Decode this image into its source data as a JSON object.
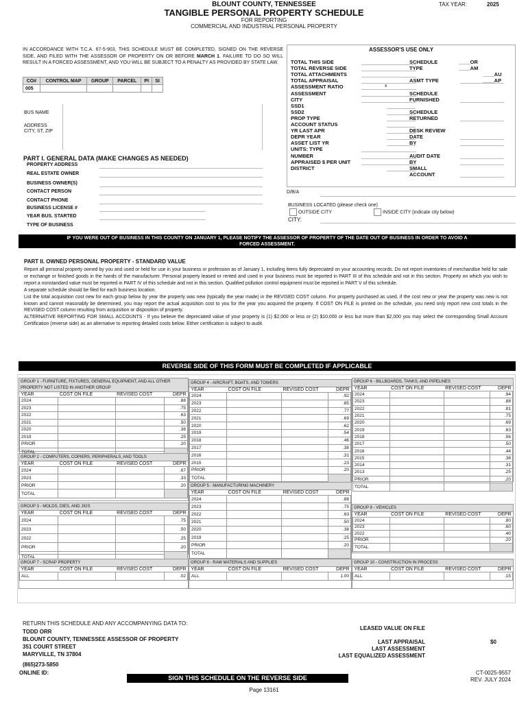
{
  "header": {
    "county": "BLOUNT COUNTY, TENNESSEE",
    "title": "TANGIBLE PERSONAL PROPERTY SCHEDULE",
    "sub1": "FOR REPORTING",
    "sub2": "COMMERCIAL AND INDUSTRIAL PERSONAL PROPERTY",
    "tax_year_label": "TAX YEAR:",
    "tax_year": "2025"
  },
  "notice": {
    "pre": "IN ACCORDANCE WITH T.C.A. 67-5-903, THIS SCHEDULE MUST BE COMPLETED, SIGNED ON THE REVERSE SIDE, AND FILED WITH THE ASSESSOR OF PROPERTY ON OR BEFORE ",
    "bold": "MARCH 1",
    "post": ". FAILURE TO DO SO WILL RESULT IN A FORCED ASSESSMENT, AND YOU WILL BE SUBJECT TO A PENALTY AS PROVIDED BY STATE LAW."
  },
  "parcel": {
    "headers": [
      "CO#",
      "CONTROL MAP",
      "GROUP",
      "PARCEL",
      "PI",
      "SI"
    ],
    "values": [
      "005",
      "",
      "",
      "",
      "",
      ""
    ]
  },
  "assessor": {
    "title": "ASSESSOR'S USE ONLY",
    "left": [
      "TOTAL THIS SIDE",
      "TOTAL REVERSE SIDE",
      "TOTAL ATTACHMENTS",
      "TOTAL APPRAISAL",
      "ASSESSMENT RATIO",
      "ASSESSMENT",
      "CITY",
      "SSD1",
      "SSD2",
      "PROP TYPE",
      "ACCOUNT STATUS",
      "YR LAST APR",
      "DEPR YEAR",
      "ASSET LIST YR",
      "UNITS: TYPE",
      "NUMBER",
      "APPRAISED $ PER UNIT",
      "DISTRICT"
    ],
    "ratio_mark": "x",
    "right": [
      "SCHEDULE",
      "TYPE",
      "",
      "ASMT TYPE",
      "",
      "SCHEDULE",
      "FURNISHED",
      "",
      "SCHEDULE",
      "RETURNED",
      "",
      "DESK REVIEW",
      "DATE",
      "BY",
      "",
      "AUDIT DATE",
      "BY",
      "SMALL",
      "ACCOUNT"
    ],
    "schedule_opts": [
      "____OR",
      "____AM",
      "____AU",
      "____AP"
    ]
  },
  "business": {
    "name_label": "BUS NAME",
    "address_label": "ADDRESS",
    "city_label": "CITY, ST, ZIP"
  },
  "part1": {
    "title": "PART I. GENERAL DATA (MAKE CHANGES AS NEEDED)",
    "fields": [
      "PROPERTY ADDRESS",
      "REAL ESTATE OWNER",
      "BUSINESS OWNER(S)",
      "CONTACT PERSON",
      "CONTACT PHONE",
      "BUSINESS LICENSE #",
      "YEAR BUS. STARTED",
      "TYPE OF BUSINESS"
    ],
    "dba": "D/B/A",
    "located": "BUSINESS LOCATED (please check one)",
    "outside": "OUTSIDE CITY",
    "inside": "INSIDE CITY (indicate city below)",
    "city": "CITY:"
  },
  "out_of_business": "IF YOU WERE OUT OF BUSINESS IN THIS COUNTY ON JANUARY 1, PLEASE NOTIFY THE ASSESSOR OF PROPERTY OF THE DATE OUT OF BUSINESS IN ORDER TO AVOID A FORCED ASSESSMENT.",
  "part2": {
    "title": "PART II. OWNED PERSONAL PROPERTY - STANDARD VALUE",
    "paragraphs": [
      "Report all personal property owned by you and used or held for use in your business or profession as of January 1, including items fully depreciated on your accounting records. Do not report inventories of merchandise held for sale or exchange or finished goods in the hands of the manufacturer. Personal property leased or rented and used in your business must be reported in PART III of this schedule and not in this section. Property on which you wish to report a nonstandard value must be reported in PART IV of this schedule and not in this section. Qualified pollution control equipment must be reported in PART V of this schedule.",
      "A separate schedule should be filed for each business location.",
      "List the total acquisition cost new for each group below by year the property was new (typically the year made) in the REVISED COST column. For property purchased as used, if the cost new or year the property was new is not known and cannot reasonably be determined, you may report the actual acquisition cost to you for the year you acquired the property. If COST ON FILE is printed on the schedule, you need only report new cost totals in the REVISED COST column resulting from acquisition or disposition of property.",
      "ALTERNATIVE REPORTING FOR SMALL ACCOUNTS - If you believe the depreciated value of your property is (1) $2,000 or less or (2) $10,000 or less but more than $2,000 you may select the corresponding Small Account Certification (reverse side) as an alternative to reporting detailed costs below. Either certification is subject to audit."
    ]
  },
  "reverse_banner": "REVERSE SIDE OF THIS FORM MUST BE COMPLETED IF APPLICABLE",
  "columns": [
    "YEAR",
    "COST ON FILE",
    "REVISED COST",
    "DEPR"
  ],
  "total_label": "TOTAL",
  "groups": [
    {
      "id": "g1",
      "title": "GROUP 1 - FURNITURE, FIXTURES, GENERAL EQUIPMENT, AND ALL OTHER PROPERTY NOT LISTED IN ANOTHER GROUP",
      "rows": [
        [
          "2024",
          ".88"
        ],
        [
          "2023",
          ".75"
        ],
        [
          "2022",
          ".63"
        ],
        [
          "2021",
          ".50"
        ],
        [
          "2020",
          ".38"
        ],
        [
          "2019",
          ".25"
        ],
        [
          "PRIOR",
          ".20"
        ]
      ],
      "total": true
    },
    {
      "id": "g2",
      "title": "GROUP 2 - COMPUTERS, COPIERS, PERIPHERALS, AND TOOLS",
      "rows": [
        [
          "2024",
          ".67"
        ],
        [
          "2023",
          ".33"
        ],
        [
          "PRIOR",
          ".20"
        ]
      ],
      "total": true
    },
    {
      "id": "g3",
      "title": "GROUP 3 - MOLDS, DIES, AND JIGS",
      "rows": [
        [
          "2024",
          ".75"
        ],
        [
          "2023",
          ".50"
        ],
        [
          "2022",
          ".25"
        ],
        [
          "PRIOR",
          ".20"
        ]
      ],
      "total": true
    },
    {
      "id": "g7",
      "title": "GROUP 7 - SCRAP PROPERTY",
      "rows": [
        [
          "ALL",
          ".02"
        ]
      ],
      "total": false
    },
    {
      "id": "g4",
      "title": "GROUP 4 - AIRCRAFT, BOATS, AND TOWERS",
      "rows": [
        [
          "2024",
          ".92"
        ],
        [
          "2023",
          ".85"
        ],
        [
          "2022",
          ".77"
        ],
        [
          "2021",
          ".69"
        ],
        [
          "2020",
          ".62"
        ],
        [
          "2019",
          ".54"
        ],
        [
          "2018",
          ".46"
        ],
        [
          "2017",
          ".38"
        ],
        [
          "2016",
          ".31"
        ],
        [
          "2015",
          ".23"
        ],
        [
          "PRIOR",
          ".20"
        ]
      ],
      "total": true
    },
    {
      "id": "g5",
      "title": "GROUP 5 - MANUFACTURING MACHINERY",
      "rows": [
        [
          "2024",
          ".88"
        ],
        [
          "2023",
          ".75"
        ],
        [
          "2022",
          ".63"
        ],
        [
          "2021",
          ".50"
        ],
        [
          "2020",
          ".38"
        ],
        [
          "2019",
          ".25"
        ],
        [
          "PRIOR",
          ".20"
        ]
      ],
      "total": true
    },
    {
      "id": "g8",
      "title": "GROUP 8 - RAW MATERIALS AND SUPPLIES",
      "rows": [
        [
          "ALL",
          "1.00"
        ]
      ],
      "total": false
    },
    {
      "id": "g6",
      "title": "GROUP 6 - BILLBOARDS, TANKS, AND PIPELINES",
      "rows": [
        [
          "2024",
          ".94"
        ],
        [
          "2023",
          ".88"
        ],
        [
          "2022",
          ".81"
        ],
        [
          "2021",
          ".75"
        ],
        [
          "2020",
          ".69"
        ],
        [
          "2019",
          ".63"
        ],
        [
          "2018",
          ".56"
        ],
        [
          "2017",
          ".50"
        ],
        [
          "2016",
          ".44"
        ],
        [
          "2015",
          ".38"
        ],
        [
          "2014",
          ".31"
        ],
        [
          "2013",
          ".25"
        ],
        [
          "PRIOR",
          ".20"
        ]
      ],
      "total": true
    },
    {
      "id": "g9",
      "title": "GROUP 9 - VEHICLES",
      "rows": [
        [
          "2024",
          ".80"
        ],
        [
          "2023",
          ".60"
        ],
        [
          "2022",
          ".40"
        ],
        [
          "PRIOR",
          ".20"
        ]
      ],
      "total": true
    },
    {
      "id": "g10",
      "title": "GROUP 10 - CONSTRUCTION IN PROCESS",
      "rows": [
        [
          "ALL",
          ".15"
        ]
      ],
      "total": false
    }
  ],
  "footer": {
    "return_to": "RETURN THIS SCHEDULE AND ANY ACCOMPANYING DATA TO:",
    "name": "TODD ORR",
    "office": "BLOUNT COUNTY, TENNESSEE ASSESSOR OF PROPERTY",
    "street": "351 COURT STREET",
    "city": "MARYVILLE, TN  37804",
    "phone": "(865)273-5850",
    "online_id": "ONLINE ID:",
    "leased": "LEASED VALUE ON FILE",
    "last_appraisal": "LAST APPRAISAL",
    "last_appraisal_value": "$0",
    "last_assessment": "LAST ASSESSMENT",
    "last_equalized": "LAST EQUALIZED ASSESSMENT",
    "sign": "SIGN THIS SCHEDULE ON THE REVERSE SIDE",
    "form_no": "CT-0025-9557",
    "rev": "REV. JULY 2024",
    "page": "Page 13161"
  }
}
